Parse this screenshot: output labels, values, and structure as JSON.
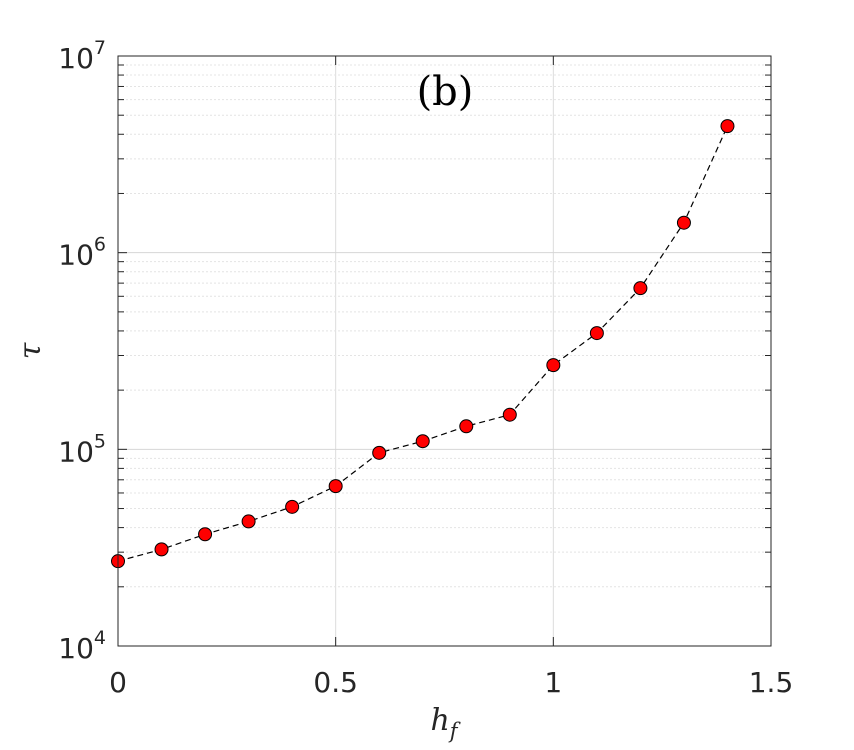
{
  "chart_data": {
    "type": "line",
    "panel_label": "(b)",
    "xlabel_main": "h",
    "xlabel_sub": "f",
    "ylabel": "τ",
    "x_scale": "linear",
    "y_scale": "log",
    "xlim": [
      0,
      1.5
    ],
    "ylim": [
      10000,
      10000000
    ],
    "x_ticks": [
      {
        "value": 0,
        "label": "0"
      },
      {
        "value": 0.5,
        "label": "0.5"
      },
      {
        "value": 1,
        "label": "1"
      },
      {
        "value": 1.5,
        "label": "1.5"
      }
    ],
    "y_ticks": [
      {
        "value": 10000,
        "base": "10",
        "exp": "4"
      },
      {
        "value": 100000,
        "base": "10",
        "exp": "5"
      },
      {
        "value": 1000000,
        "base": "10",
        "exp": "6"
      },
      {
        "value": 10000000,
        "base": "10",
        "exp": "7"
      }
    ],
    "grid": true,
    "series": [
      {
        "line_style": "dashed",
        "line_color": "#000000",
        "marker": "circle",
        "marker_color": "#ff0000",
        "marker_edge": "#000000",
        "x": [
          0,
          0.1,
          0.2,
          0.3,
          0.4,
          0.5,
          0.6,
          0.7,
          0.8,
          0.9,
          1.0,
          1.1,
          1.2,
          1.3,
          1.4
        ],
        "y": [
          27000,
          31000,
          37000,
          43000,
          51000,
          65000,
          96000,
          110000,
          131000,
          150000,
          268000,
          390000,
          660000,
          1420000,
          4400000
        ]
      }
    ]
  }
}
